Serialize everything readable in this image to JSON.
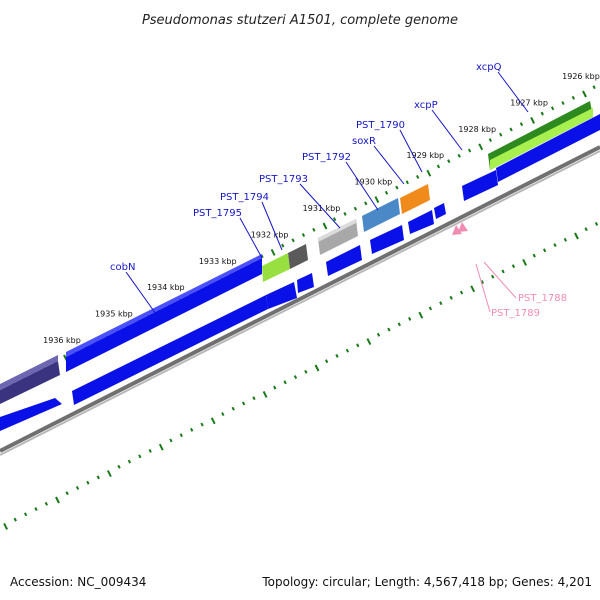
{
  "title": "Pseudomonas stutzeri A1501, complete genome",
  "footer": {
    "accession": "Accession: NC_009434",
    "summary": "Topology: circular; Length: 4,567,418 bp; Genes: 4,201"
  },
  "colors": {
    "cds_blue": "#0a10e8",
    "tick_green": "#1a7a1a",
    "label_blue": "#1515c8",
    "label_pink": "#f08cb4",
    "backbone_gray": "#8c8c8c"
  },
  "ticks": [
    {
      "label": "1926 kbp",
      "kbp": 1926
    },
    {
      "label": "1927 kbp",
      "kbp": 1927
    },
    {
      "label": "1928 kbp",
      "kbp": 1928
    },
    {
      "label": "1929 kbp",
      "kbp": 1929
    },
    {
      "label": "1930 kbp",
      "kbp": 1930
    },
    {
      "label": "1931 kbp",
      "kbp": 1931
    },
    {
      "label": "1932 kbp",
      "kbp": 1932
    },
    {
      "label": "1933 kbp",
      "kbp": 1933
    },
    {
      "label": "1934 kbp",
      "kbp": 1934
    },
    {
      "label": "1935 kbp",
      "kbp": 1935
    },
    {
      "label": "1936 kbp",
      "kbp": 1936
    }
  ],
  "genes": [
    {
      "name": "xcpQ",
      "color": "#3a9a2a",
      "strand": "forward",
      "start_kbp": 1926.2,
      "end_kbp": 1927.7
    },
    {
      "name": "xcpP",
      "color": "#0a10e8",
      "strand": "forward",
      "start_kbp": 1927.8,
      "end_kbp": 1928.5
    },
    {
      "name": "PST_1790",
      "color": "#f08a1a",
      "strand": "forward",
      "start_kbp": 1929.0,
      "end_kbp": 1929.4
    },
    {
      "name": "soxR",
      "color": "#4a88c8",
      "strand": "forward",
      "start_kbp": 1929.6,
      "end_kbp": 1930.0
    },
    {
      "name": "PST_1792",
      "color": "#a8a8a8",
      "strand": "forward",
      "start_kbp": 1930.3,
      "end_kbp": 1930.9
    },
    {
      "name": "PST_1793",
      "color": "#606060",
      "strand": "forward",
      "start_kbp": 1931.1,
      "end_kbp": 1931.4
    },
    {
      "name": "PST_1794",
      "color": "#98e040",
      "strand": "forward",
      "start_kbp": 1931.4,
      "end_kbp": 1931.8
    },
    {
      "name": "PST_1795",
      "color": "#0a10e8",
      "strand": "forward",
      "start_kbp": 1931.8,
      "end_kbp": 1933.9
    },
    {
      "name": "cobN",
      "color": "#0a10e8",
      "strand": "forward",
      "start_kbp": 1933.9,
      "end_kbp": 1937.2
    },
    {
      "name": "PST_1788",
      "color": "#f08cb4",
      "strand": "reverse",
      "start_kbp": 1929.3,
      "end_kbp": 1929.35
    },
    {
      "name": "PST_1789",
      "color": "#f08cb4",
      "strand": "reverse",
      "start_kbp": 1929.4,
      "end_kbp": 1929.45
    }
  ]
}
